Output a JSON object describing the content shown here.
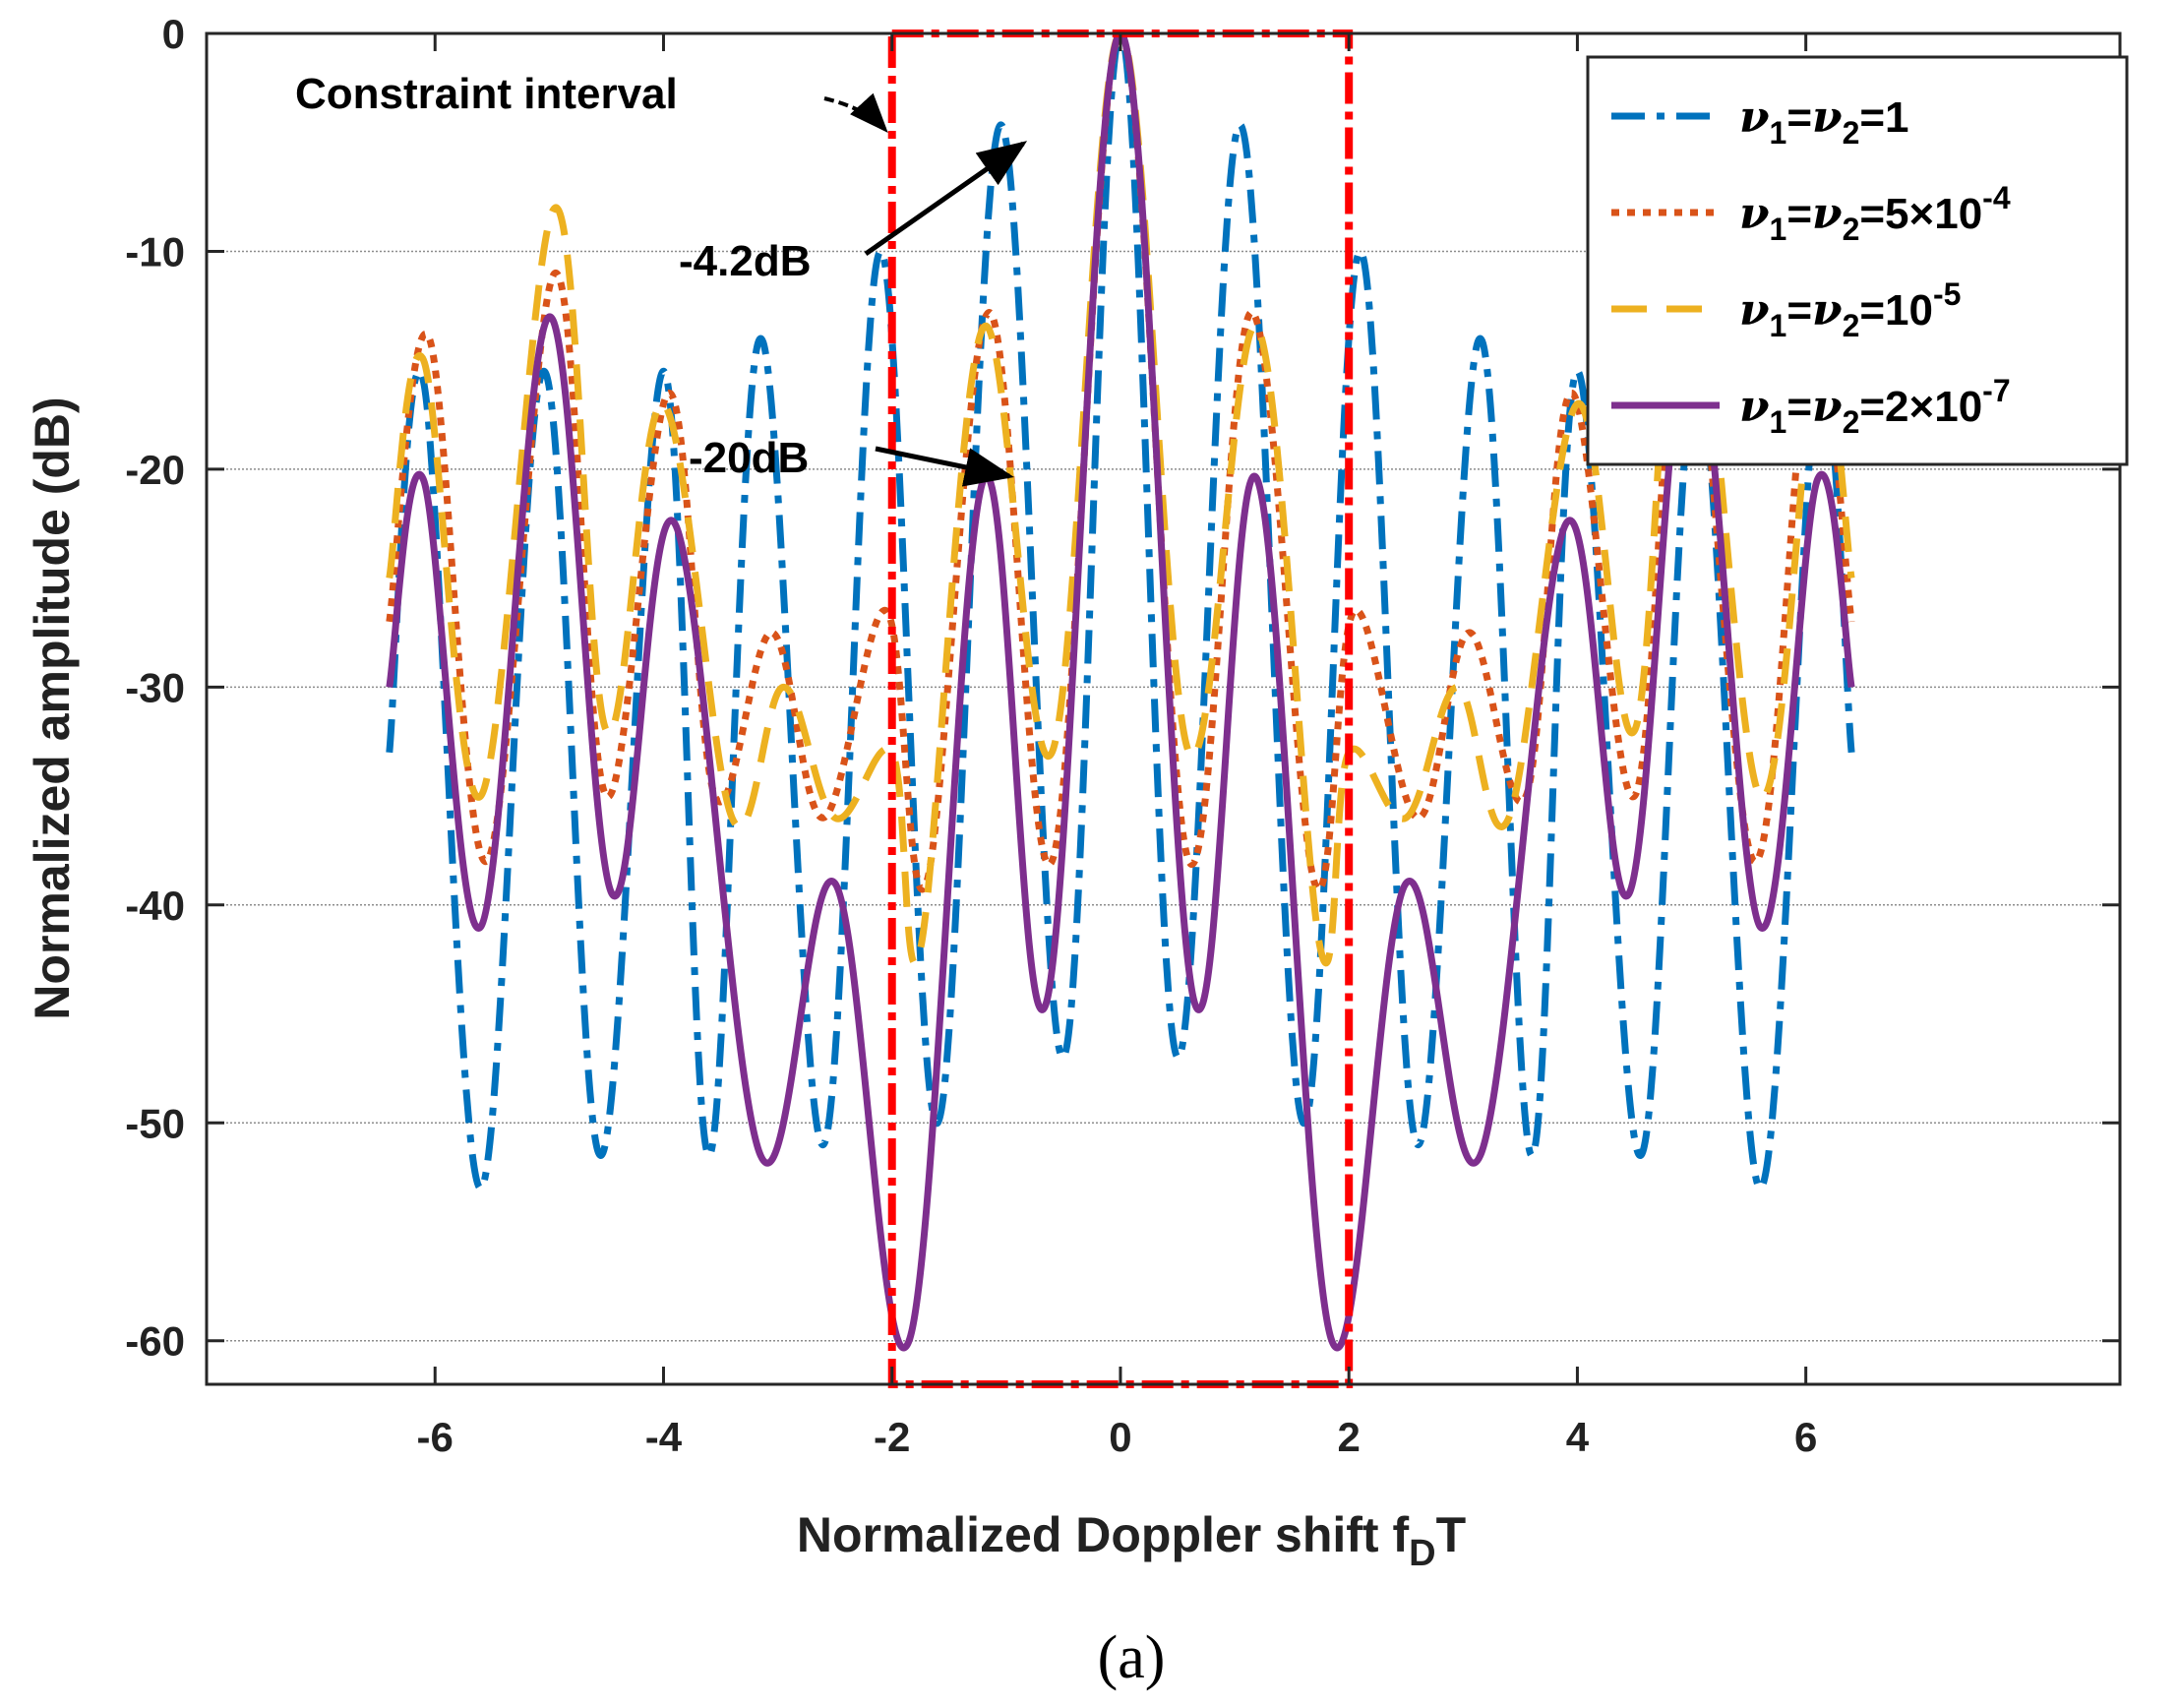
{
  "chart_data": {
    "type": "line",
    "xlabel": "Normalized Doppler shift f",
    "xlabel_sub": "D",
    "xlabel_tail": "T",
    "ylabel": "Normalized amplitude (dB)",
    "xlim": [
      -8,
      8.75
    ],
    "ylim": [
      -62,
      0
    ],
    "xticks": [
      -6,
      -4,
      -2,
      0,
      2,
      4,
      6
    ],
    "xtick_labels": [
      "-6",
      "-4",
      "-2",
      "0",
      "2",
      "4",
      "6"
    ],
    "yticks": [
      0,
      -10,
      -20,
      -30,
      -40,
      -50,
      -60
    ],
    "ytick_labels": [
      "0",
      "-10",
      "-20",
      "-30",
      "-40",
      "-50",
      "-60"
    ],
    "grid": "horizontal",
    "caption": "(a)",
    "legend_position": "top-right",
    "series": [
      {
        "name": "ν1=ν2=1",
        "legend": {
          "pre": "ν",
          "s1": "1",
          "mid": "=ν",
          "s2": "2",
          "post": "=1",
          "exp": ""
        },
        "color": "#0072BD",
        "style": "dashdot",
        "x": [
          -6.4,
          -6.1,
          -5.6,
          -5.05,
          -4.55,
          -4.0,
          -3.6,
          -3.15,
          -2.6,
          -2.1,
          -1.6,
          -1.05,
          -0.5,
          0,
          0.5,
          1.05,
          1.6,
          2.1,
          2.6,
          3.15,
          3.6,
          4.0,
          4.55,
          5.05,
          5.6,
          6.1,
          6.4
        ],
        "y": [
          -33,
          -16,
          -53,
          -15.5,
          -51.5,
          -15.5,
          -51.5,
          -14,
          -51,
          -10,
          -50,
          -4.2,
          -47,
          0,
          -47,
          -4.2,
          -50,
          -10,
          -51,
          -14,
          -51.5,
          -15.5,
          -51.5,
          -15.5,
          -53,
          -16,
          -33
        ]
      },
      {
        "name": "ν1=ν2=5×10^-4",
        "legend": {
          "pre": "ν",
          "s1": "1",
          "mid": "=ν",
          "s2": "2",
          "post": "=5×10",
          "exp": "-4"
        },
        "color": "#D95319",
        "style": "dotted",
        "x": [
          -6.4,
          -6.05,
          -5.55,
          -4.95,
          -4.5,
          -3.95,
          -3.55,
          -3.05,
          -2.6,
          -2.05,
          -1.7,
          -1.15,
          -0.6,
          0,
          0.6,
          1.15,
          1.7,
          2.05,
          2.6,
          3.05,
          3.55,
          3.95,
          4.5,
          4.95,
          5.55,
          6.05,
          6.4
        ],
        "y": [
          -27,
          -14,
          -38,
          -11,
          -35,
          -16.5,
          -35,
          -27.5,
          -36,
          -26.5,
          -39,
          -12.8,
          -38,
          0,
          -38,
          -12.8,
          -39,
          -26.5,
          -36,
          -27.5,
          -35,
          -16.5,
          -35,
          -11,
          -38,
          -14,
          -27
        ]
      },
      {
        "name": "ν1=ν2=10^-5",
        "legend": {
          "pre": "ν",
          "s1": "1",
          "mid": "=ν",
          "s2": "2",
          "post": "=10",
          "exp": "-5"
        },
        "color": "#EDB120",
        "style": "dashed",
        "x": [
          -6.4,
          -6.1,
          -5.6,
          -4.95,
          -4.5,
          -4.0,
          -3.4,
          -2.95,
          -2.5,
          -2.0,
          -1.75,
          -1.2,
          -0.6,
          0,
          0.6,
          1.2,
          1.75,
          2.0,
          2.5,
          2.95,
          3.4,
          4.0,
          4.5,
          4.95,
          5.6,
          6.1,
          6.4
        ],
        "y": [
          -25,
          -15,
          -35,
          -8,
          -32,
          -17,
          -36,
          -30,
          -36,
          -33,
          -42,
          -13.5,
          -33,
          0,
          -33,
          -13.5,
          -42,
          -33,
          -36,
          -30,
          -36,
          -17,
          -32,
          -8,
          -35,
          -15,
          -25
        ]
      },
      {
        "name": "ν1=ν2=2×10^-7",
        "legend": {
          "pre": "ν",
          "s1": "1",
          "mid": "=ν",
          "s2": "2",
          "post": "=2×10",
          "exp": "-7"
        },
        "color": "#7E2F8E",
        "style": "solid",
        "x": [
          -6.4,
          -6.1,
          -5.6,
          -5.0,
          -4.45,
          -3.9,
          -3.15,
          -2.5,
          -1.85,
          -1.2,
          -0.65,
          0,
          0.65,
          1.2,
          1.85,
          2.5,
          3.15,
          3.9,
          4.45,
          5.0,
          5.6,
          6.1,
          6.4
        ],
        "y": [
          -30,
          -20.5,
          -41,
          -13,
          -39.5,
          -22.5,
          -51.5,
          -39,
          -60,
          -20.5,
          -44.5,
          0,
          -44.5,
          -20.5,
          -60,
          -39,
          -51.5,
          -22.5,
          -39.5,
          -13,
          -41,
          -20.5,
          -30
        ]
      }
    ],
    "constraint_box": {
      "x": [
        -2,
        2
      ],
      "y": [
        -62,
        0
      ],
      "color": "#FF0000"
    },
    "annotations": [
      {
        "text": "Constraint interval"
      },
      {
        "text": "-4.2dB",
        "target": [
          -1.1,
          -4.2
        ]
      },
      {
        "text": "-20dB",
        "target": [
          -1.2,
          -20.5
        ]
      }
    ]
  }
}
